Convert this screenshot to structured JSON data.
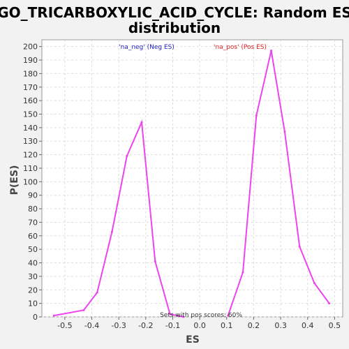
{
  "chart_data": {
    "type": "line",
    "title_line1": "GO_TRICARBOXYLIC_ACID_CYCLE: Random ES",
    "title_line2": "distribution",
    "xlabel": "ES",
    "ylabel": "P(ES)",
    "xlim": [
      -0.585,
      0.53
    ],
    "ylim": [
      0,
      205
    ],
    "xticks": [
      -0.5,
      -0.4,
      -0.3,
      -0.2,
      -0.1,
      0.0,
      0.1,
      0.2,
      0.3,
      0.4,
      0.5
    ],
    "xtick_labels": [
      "-0.5",
      "-0.4",
      "-0.3",
      "-0.2",
      "-0.1",
      "0.0",
      "0.1",
      "0.2",
      "0.3",
      "0.4",
      "0.5"
    ],
    "yticks": [
      0,
      10,
      20,
      30,
      40,
      50,
      60,
      70,
      80,
      90,
      100,
      110,
      120,
      130,
      140,
      150,
      160,
      170,
      180,
      190,
      200
    ],
    "grid": true,
    "legend": [
      {
        "label": "'na_neg' (Neg ES)",
        "color": "#2222cc"
      },
      {
        "label": "'na_pos' (Pos ES)",
        "color": "#dd2222"
      }
    ],
    "annotation": "Sets with pos scores: 60%",
    "series": [
      {
        "color": "#ee44ee",
        "x": [
          -0.54,
          -0.43,
          -0.38,
          -0.325,
          -0.27,
          -0.215,
          -0.165,
          -0.11,
          -0.06
        ],
        "y": [
          1,
          5,
          18,
          63,
          119,
          144,
          41,
          2,
          0
        ]
      },
      {
        "color": "#ee44ee",
        "x": [
          0.105,
          0.16,
          0.21,
          0.265,
          0.315,
          0.37,
          0.425,
          0.48
        ],
        "y": [
          1,
          33,
          149,
          197,
          137,
          52,
          25,
          10
        ]
      }
    ]
  }
}
